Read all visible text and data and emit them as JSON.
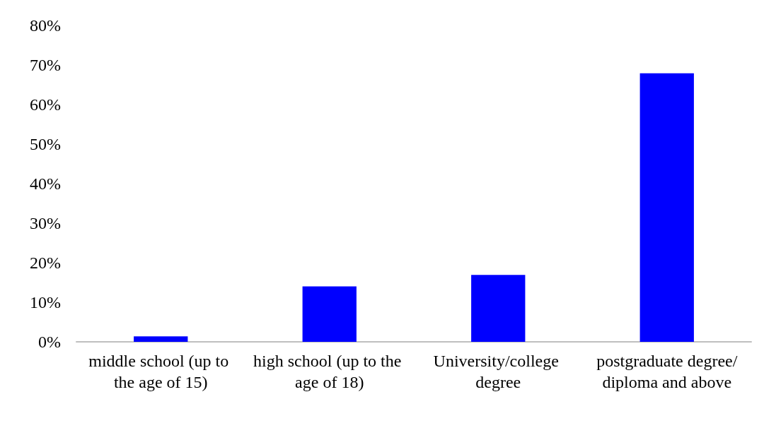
{
  "chart_data": {
    "type": "bar",
    "categories": [
      "middle school (up to the age of 15)",
      "high school (up to the age of 18)",
      "University/college degree",
      "postgraduate degree/diploma and above"
    ],
    "series": [
      {
        "color": "#0000ff",
        "values": [
          1.4,
          14,
          16.9,
          67.9
        ]
      }
    ],
    "ylim": [
      0,
      80
    ],
    "yticks": [
      {
        "value": 0,
        "label": "0%"
      },
      {
        "value": 10,
        "label": "10%"
      },
      {
        "value": 20,
        "label": "20%"
      },
      {
        "value": 30,
        "label": "30%"
      },
      {
        "value": 40,
        "label": "40%"
      },
      {
        "value": 50,
        "label": "50%"
      },
      {
        "value": 60,
        "label": "60%"
      },
      {
        "value": 70,
        "label": "70%"
      },
      {
        "value": 80,
        "label": "80%"
      }
    ],
    "grid": false
  }
}
